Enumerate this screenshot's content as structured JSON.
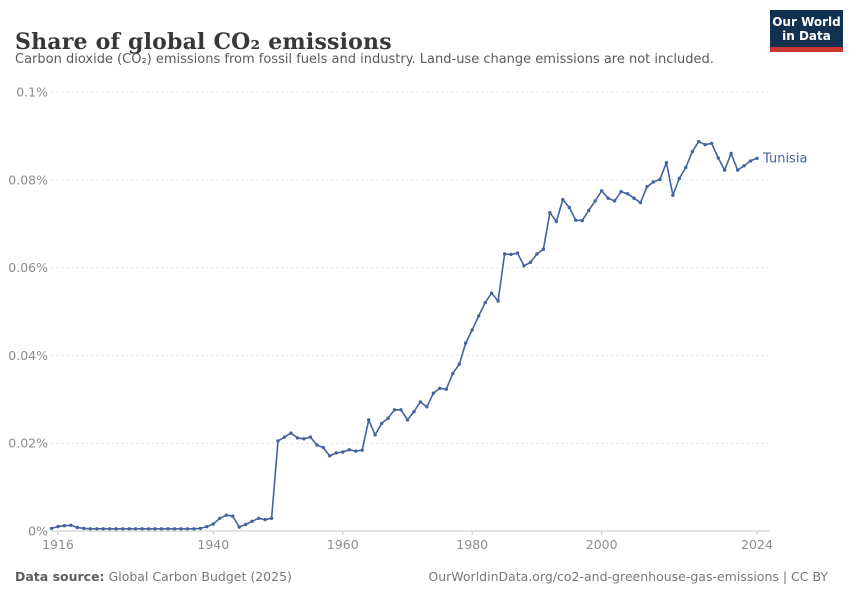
{
  "header": {
    "title": "Share of global CO₂ emissions",
    "subtitle": "Carbon dioxide (CO₂) emissions from fossil fuels and industry. Land-use change emissions are not included."
  },
  "logo": {
    "line1": "Our World",
    "line2": "in Data",
    "bg_color": "#12304f",
    "bar_color": "#c8362d"
  },
  "footer": {
    "source_label": "Data source:",
    "source_value": "Global Carbon Budget (2025)",
    "credit": "OurWorldinData.org/co2-and-greenhouse-gas-emissions | CC BY"
  },
  "chart_data": {
    "type": "line",
    "title": "Share of global CO₂ emissions",
    "subtitle": "Carbon dioxide (CO₂) emissions from fossil fuels and industry. Land-use change emissions are not included.",
    "entity": "Tunisia",
    "unit": "%",
    "line_color": "#44639f",
    "grid": true,
    "grid_color": "#dedede",
    "axis_color": "#c8c8c8",
    "legend_position": "end-of-line",
    "xlim": [
      1915,
      2024
    ],
    "ylim": [
      0,
      0.1
    ],
    "yticks": [
      {
        "v": 0,
        "label": "0%"
      },
      {
        "v": 0.02,
        "label": "0.02%"
      },
      {
        "v": 0.04,
        "label": "0.04%"
      },
      {
        "v": 0.06,
        "label": "0.06%"
      },
      {
        "v": 0.08,
        "label": "0.08%"
      },
      {
        "v": 0.1,
        "label": "0.1%"
      }
    ],
    "xticks": [
      1916,
      1940,
      1960,
      1980,
      2000,
      2024
    ],
    "x": [
      1915,
      1916,
      1917,
      1918,
      1919,
      1920,
      1921,
      1922,
      1923,
      1924,
      1925,
      1926,
      1927,
      1928,
      1929,
      1930,
      1931,
      1932,
      1933,
      1934,
      1935,
      1936,
      1937,
      1938,
      1939,
      1940,
      1941,
      1942,
      1943,
      1944,
      1945,
      1946,
      1947,
      1948,
      1949,
      1950,
      1951,
      1952,
      1953,
      1954,
      1955,
      1956,
      1957,
      1958,
      1959,
      1960,
      1961,
      1962,
      1963,
      1964,
      1965,
      1966,
      1967,
      1968,
      1969,
      1970,
      1971,
      1972,
      1973,
      1974,
      1975,
      1976,
      1977,
      1978,
      1979,
      1980,
      1981,
      1982,
      1983,
      1984,
      1985,
      1986,
      1987,
      1988,
      1989,
      1990,
      1991,
      1992,
      1993,
      1994,
      1995,
      1996,
      1997,
      1998,
      1999,
      2000,
      2001,
      2002,
      2003,
      2004,
      2005,
      2006,
      2007,
      2008,
      2009,
      2010,
      2011,
      2012,
      2013,
      2014,
      2015,
      2016,
      2017,
      2018,
      2019,
      2020,
      2021,
      2022,
      2023,
      2024
    ],
    "series": [
      {
        "name": "Tunisia",
        "values": [
          0.0006,
          0.001,
          0.0012,
          0.0013,
          0.0008,
          0.0006,
          0.0005,
          0.0005,
          0.0005,
          0.0005,
          0.0005,
          0.0005,
          0.0005,
          0.0005,
          0.0005,
          0.0005,
          0.0005,
          0.0005,
          0.0005,
          0.0005,
          0.0005,
          0.0005,
          0.0005,
          0.0006,
          0.001,
          0.0016,
          0.0029,
          0.0036,
          0.0034,
          0.0009,
          0.0015,
          0.0022,
          0.0029,
          0.0026,
          0.0029,
          0.0205,
          0.0214,
          0.0223,
          0.0212,
          0.021,
          0.0214,
          0.0196,
          0.019,
          0.0171,
          0.0178,
          0.018,
          0.0185,
          0.0182,
          0.0184,
          0.0253,
          0.0219,
          0.0245,
          0.0257,
          0.0276,
          0.0276,
          0.0253,
          0.0272,
          0.0294,
          0.0283,
          0.0314,
          0.0325,
          0.0323,
          0.0359,
          0.038,
          0.0428,
          0.0458,
          0.049,
          0.052,
          0.0542,
          0.0524,
          0.0631,
          0.063,
          0.0633,
          0.0604,
          0.0612,
          0.0631,
          0.0642,
          0.0725,
          0.0705,
          0.0755,
          0.0737,
          0.0708,
          0.0707,
          0.073,
          0.0752,
          0.0775,
          0.0758,
          0.0752,
          0.0773,
          0.0768,
          0.0758,
          0.0748,
          0.0784,
          0.0795,
          0.0801,
          0.0839,
          0.0765,
          0.0803,
          0.0828,
          0.0864,
          0.0887,
          0.088,
          0.0883,
          0.085,
          0.0822,
          0.086,
          0.0822,
          0.0832,
          0.0843,
          0.0849
        ]
      }
    ]
  }
}
